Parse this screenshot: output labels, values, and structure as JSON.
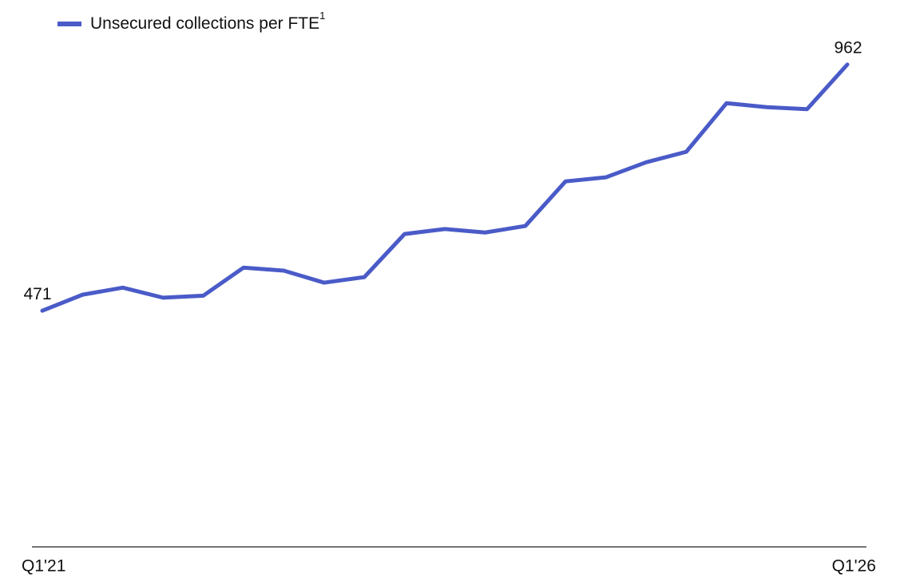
{
  "chart_data": {
    "type": "line",
    "categories": [
      "Q1'21",
      null,
      null,
      null,
      null,
      null,
      null,
      null,
      null,
      null,
      null,
      null,
      null,
      null,
      null,
      null,
      null,
      null,
      null,
      null,
      "Q1'26"
    ],
    "series": [
      {
        "name": "Unsecured collections per FTE",
        "name_footnote": "1",
        "color": "#4a5bc8",
        "values": [
          471,
          503,
          517,
          497,
          501,
          557,
          551,
          527,
          538,
          624,
          634,
          627,
          640,
          729,
          737,
          767,
          788,
          885,
          877,
          873,
          962
        ]
      }
    ],
    "ylim": [
      0,
      1000
    ],
    "grid": false
  }
}
